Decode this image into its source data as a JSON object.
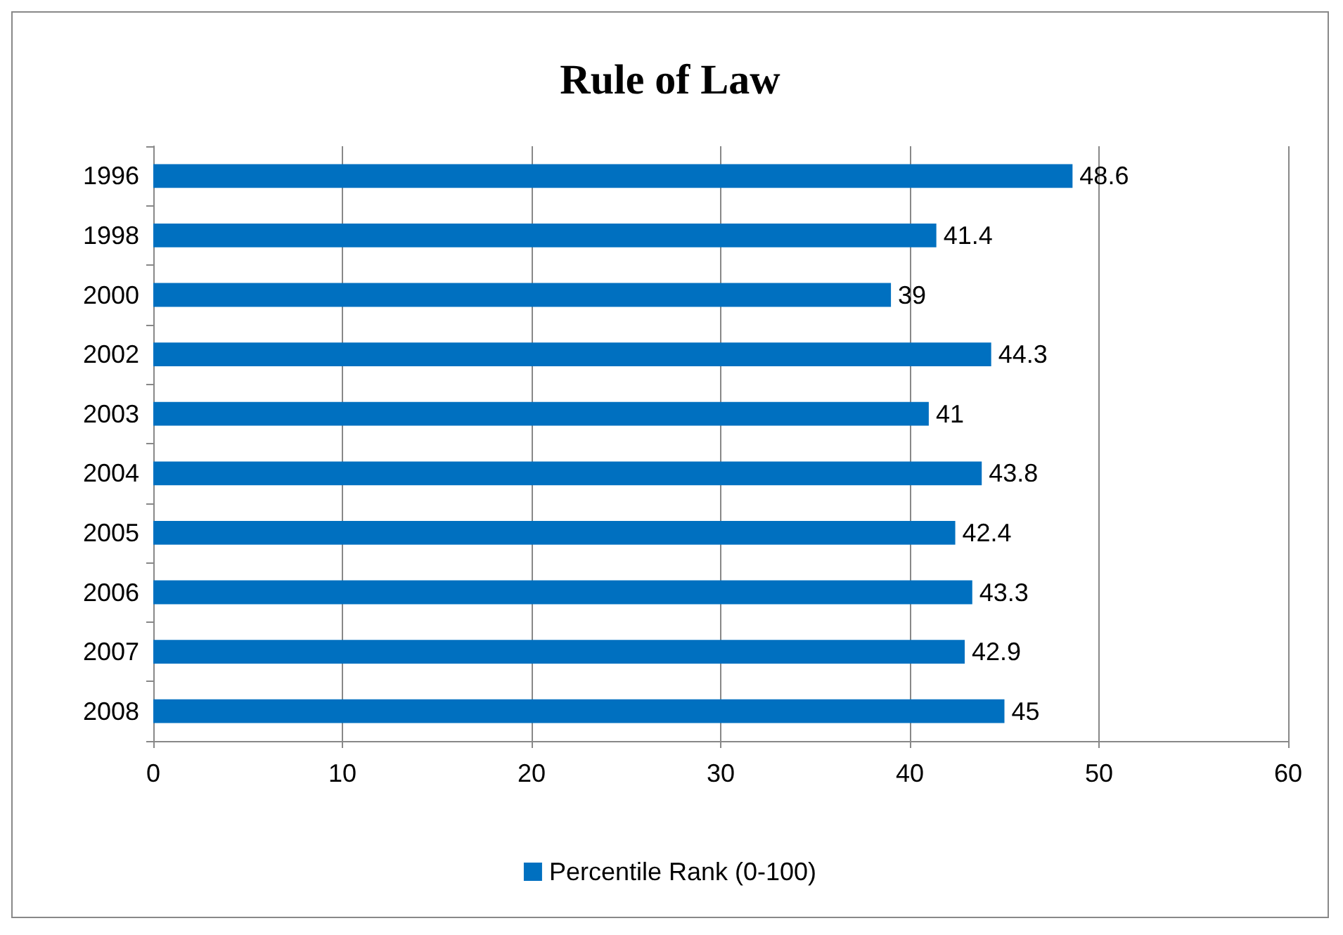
{
  "chart_data": {
    "type": "bar",
    "title": "Rule of Law",
    "orientation": "horizontal",
    "categories": [
      "1996",
      "1998",
      "2000",
      "2002",
      "2003",
      "2004",
      "2005",
      "2006",
      "2007",
      "2008"
    ],
    "series": [
      {
        "name": "Percentile Rank (0-100)",
        "color": "#0070c0",
        "values": [
          48.6,
          41.4,
          39,
          44.3,
          41,
          43.8,
          42.4,
          43.3,
          42.9,
          45
        ]
      }
    ],
    "xlim": [
      0,
      60
    ],
    "xticks": [
      0,
      10,
      20,
      30,
      40,
      50,
      60
    ],
    "grid": "x",
    "legend": "bottom",
    "data_labels": true
  }
}
